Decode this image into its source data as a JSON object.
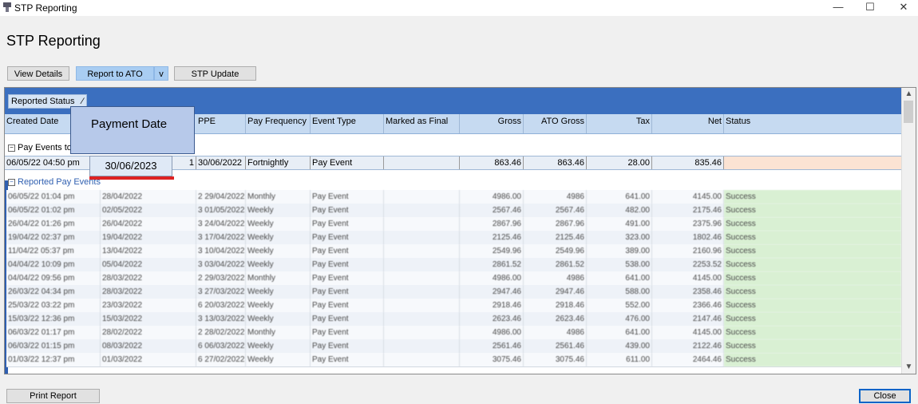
{
  "window": {
    "title": "STP Reporting"
  },
  "page_title": "STP Reporting",
  "toolbar": {
    "view_details": "View Details",
    "report_to_ato": "Report to ATO",
    "dropdown": "v",
    "stp_update": "STP Update"
  },
  "grid": {
    "group_by": "Reported Status",
    "columns": {
      "created_date": "Created Date",
      "ppe": "PPE",
      "pay_frequency": "Pay Frequency",
      "event_type": "Event Type",
      "marked_as_final": "Marked as Final",
      "gross": "Gross",
      "ato_gross": "ATO Gross",
      "tax": "Tax",
      "net": "Net",
      "status": "Status"
    },
    "group_pending": "Pay Events to",
    "pending_row": {
      "created_date": "06/05/22 04:50 pm",
      "count": "1",
      "ppe": "30/06/2022",
      "pay_frequency": "Fortnightly",
      "event_type": "Pay Event",
      "marked_as_final": "",
      "gross": "863.46",
      "ato_gross": "863.46",
      "tax": "28.00",
      "net": "835.46",
      "status": ""
    },
    "group_reported": "Reported Pay Events",
    "reported_rows": [
      [
        "06/05/22 01:04 pm",
        "28/04/2022",
        "2 29/04/2022",
        "Monthly",
        "Pay Event",
        "",
        "4986.00",
        "4986",
        "641.00",
        "4145.00",
        "Success"
      ],
      [
        "06/05/22 01:02 pm",
        "02/05/2022",
        "3 01/05/2022",
        "Weekly",
        "Pay Event",
        "",
        "2567.46",
        "2567.46",
        "482.00",
        "2175.46",
        "Success"
      ],
      [
        "26/04/22 01:26 pm",
        "26/04/2022",
        "3 24/04/2022",
        "Weekly",
        "Pay Event",
        "",
        "2867.96",
        "2867.96",
        "491.00",
        "2375.96",
        "Success"
      ],
      [
        "19/04/22 02:37 pm",
        "19/04/2022",
        "3 17/04/2022",
        "Weekly",
        "Pay Event",
        "",
        "2125.46",
        "2125.46",
        "323.00",
        "1802.46",
        "Success"
      ],
      [
        "11/04/22 05:37 pm",
        "13/04/2022",
        "3 10/04/2022",
        "Weekly",
        "Pay Event",
        "",
        "2549.96",
        "2549.96",
        "389.00",
        "2160.96",
        "Success"
      ],
      [
        "04/04/22 10:09 pm",
        "05/04/2022",
        "3 03/04/2022",
        "Weekly",
        "Pay Event",
        "",
        "2861.52",
        "2861.52",
        "538.00",
        "2253.52",
        "Success"
      ],
      [
        "04/04/22 09:56 pm",
        "28/03/2022",
        "2 29/03/2022",
        "Monthly",
        "Pay Event",
        "",
        "4986.00",
        "4986",
        "641.00",
        "4145.00",
        "Success"
      ],
      [
        "26/03/22 04:34 pm",
        "28/03/2022",
        "3 27/03/2022",
        "Weekly",
        "Pay Event",
        "",
        "2947.46",
        "2947.46",
        "588.00",
        "2358.46",
        "Success"
      ],
      [
        "25/03/22 03:22 pm",
        "23/03/2022",
        "6 20/03/2022",
        "Weekly",
        "Pay Event",
        "",
        "2918.46",
        "2918.46",
        "552.00",
        "2366.46",
        "Success"
      ],
      [
        "15/03/22 12:36 pm",
        "15/03/2022",
        "3 13/03/2022",
        "Weekly",
        "Pay Event",
        "",
        "2623.46",
        "2623.46",
        "476.00",
        "2147.46",
        "Success"
      ],
      [
        "06/03/22 01:17 pm",
        "28/02/2022",
        "2 28/02/2022",
        "Monthly",
        "Pay Event",
        "",
        "4986.00",
        "4986",
        "641.00",
        "4145.00",
        "Success"
      ],
      [
        "06/03/22 01:15 pm",
        "08/03/2022",
        "6 06/03/2022",
        "Weekly",
        "Pay Event",
        "",
        "2561.46",
        "2561.46",
        "439.00",
        "2122.46",
        "Success"
      ],
      [
        "01/03/22 12:37 pm",
        "01/03/2022",
        "6 27/02/2022",
        "Weekly",
        "Pay Event",
        "",
        "3075.46",
        "3075.46",
        "611.00",
        "2464.46",
        "Success"
      ]
    ]
  },
  "callout": {
    "label": "Payment Date",
    "value": "30/06/2023"
  },
  "footer": {
    "print_report": "Print Report",
    "close": "Close"
  },
  "window_controls": {
    "minimize": "—",
    "maximize": "☐",
    "close": "✕"
  },
  "icons": {
    "app": "app-icon",
    "scroll_up": "chevron-up-icon",
    "scroll_down": "chevron-down-icon"
  },
  "colors": {
    "group_band": "#3b6fbf",
    "header": "#c6daf1",
    "pending_status": "#fbe3d3",
    "success_status": "#d9f0d3",
    "accent": "#0a64c8"
  }
}
